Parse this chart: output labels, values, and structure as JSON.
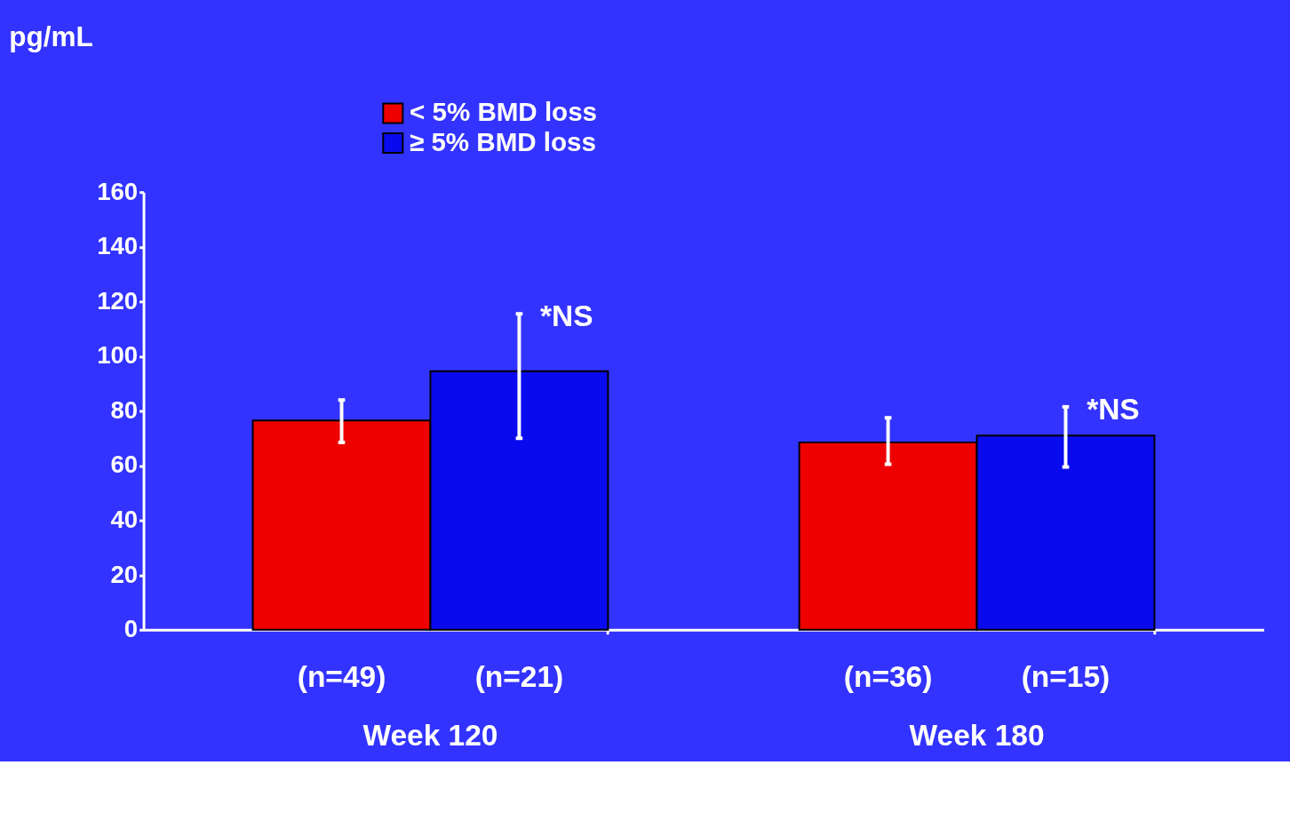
{
  "chart_data": {
    "type": "bar",
    "ylabel": "pg/mL",
    "categories": [
      "Week 120",
      "Week 180"
    ],
    "series": [
      {
        "name": "< 5% BMD loss",
        "color": "#ee0000",
        "values": [
          76.5,
          68.5
        ],
        "errors": [
          [
            68.5,
            84
          ],
          [
            60.5,
            77.5
          ]
        ]
      },
      {
        "name": "≥ 5% BMD loss",
        "color": "#0a0aee",
        "values": [
          94.5,
          71
        ],
        "errors": [
          [
            70,
            115.5
          ],
          [
            59.5,
            81.5
          ]
        ]
      }
    ],
    "ylim": [
      0,
      160
    ],
    "yticks": [
      0,
      20,
      40,
      60,
      80,
      100,
      120,
      140,
      160
    ],
    "grid": false,
    "legend": "top left",
    "annotations": [
      "*NS",
      "*NS",
      "(n=49)",
      "(n=21)",
      "(n=36)",
      "(n=15)"
    ]
  }
}
